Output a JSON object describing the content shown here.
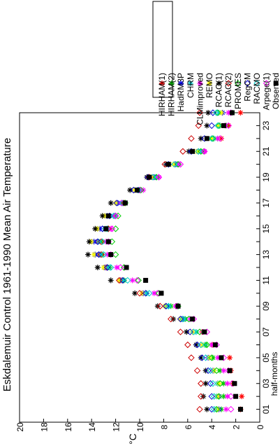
{
  "chart_data": {
    "type": "scatter",
    "title": "Eskdalemuir Control 1961-1990 Mean Air Temperature",
    "xlabel": "half-months",
    "ylabel": "°C",
    "xlim": [
      0,
      24
    ],
    "ylim": [
      0,
      20
    ],
    "x_ticks": [
      "01",
      "03",
      "05",
      "07",
      "09",
      "11",
      "13",
      "15",
      "17",
      "19",
      "21",
      "23"
    ],
    "y_ticks": [
      "0",
      "2",
      "4",
      "6",
      "8",
      "10",
      "12",
      "14",
      "16",
      "18",
      "20"
    ],
    "orientation": "rotated 90° counter-clockwise",
    "legend_position": "top",
    "grid": false,
    "x": [
      1,
      2,
      3,
      4,
      5,
      6,
      7,
      8,
      9,
      10,
      11,
      12,
      13,
      14,
      15,
      16,
      17,
      18,
      19,
      20,
      21,
      22,
      23,
      24
    ],
    "series": [
      {
        "name": "HIRHAM(1)",
        "color": "#ff0000",
        "marker": "asterisk",
        "values": [
          1.6,
          1.5,
          2.2,
          2.4,
          2.5,
          3.9,
          4.8,
          6.4,
          7.0,
          9.8,
          11.5,
          12.8,
          13.4,
          13.5,
          12.9,
          12.2,
          11.5,
          10.0,
          8.8,
          7.0,
          4.6,
          3.2,
          2.6,
          1.6
        ]
      },
      {
        "name": "HIRHAM(2)",
        "color": "#00cc00",
        "marker": "asterisk",
        "values": [
          3.2,
          3.0,
          3.0,
          3.3,
          3.9,
          4.5,
          5.3,
          6.2,
          7.4,
          9.4,
          11.3,
          12.5,
          13.1,
          13.2,
          12.8,
          12.2,
          11.5,
          10.0,
          8.6,
          6.8,
          4.7,
          3.5,
          2.8,
          2.3
        ]
      },
      {
        "name": "HadRM3P",
        "color": "#0000ff",
        "marker": "asterisk",
        "values": [
          3.4,
          3.4,
          3.5,
          3.9,
          4.3,
          4.8,
          5.6,
          6.5,
          7.8,
          9.7,
          11.6,
          12.9,
          13.7,
          13.8,
          13.3,
          12.7,
          11.8,
          10.2,
          8.8,
          7.0,
          5.1,
          4.0,
          3.3,
          3.1
        ]
      },
      {
        "name": "CHRM",
        "color": "#00cccc",
        "marker": "asterisk",
        "values": [
          3.6,
          3.6,
          3.5,
          3.8,
          4.2,
          4.6,
          5.3,
          6.3,
          7.6,
          9.4,
          11.4,
          12.6,
          13.3,
          13.4,
          12.9,
          12.2,
          11.5,
          10.0,
          8.7,
          6.9,
          4.9,
          3.8,
          3.3,
          3.4
        ]
      },
      {
        "name": "CLMimproved",
        "color": "#ff00ff",
        "marker": "asterisk",
        "values": [
          2.8,
          2.7,
          2.7,
          3.0,
          3.5,
          4.0,
          4.7,
          5.8,
          7.0,
          8.8,
          10.6,
          11.9,
          12.7,
          12.8,
          12.4,
          12.0,
          11.3,
          9.7,
          8.4,
          6.7,
          4.6,
          3.5,
          2.9,
          2.6
        ]
      },
      {
        "name": "REMO",
        "color": "#ffff00",
        "marker": "asterisk",
        "values": [
          3.5,
          3.5,
          3.4,
          3.8,
          4.2,
          4.8,
          5.6,
          6.6,
          7.9,
          9.8,
          11.7,
          13.0,
          13.8,
          14.0,
          13.5,
          12.9,
          12.0,
          10.4,
          9.0,
          7.2,
          5.2,
          4.0,
          3.4,
          3.2
        ]
      },
      {
        "name": "RCAO(1)",
        "color": "#000000",
        "marker": "asterisk",
        "values": [
          4.4,
          4.7,
          4.5,
          4.5,
          4.9,
          5.3,
          6.1,
          7.2,
          8.5,
          10.4,
          12.4,
          13.5,
          14.3,
          14.2,
          13.7,
          13.1,
          12.4,
          10.8,
          9.4,
          7.8,
          5.9,
          4.9,
          4.4,
          4.3
        ]
      },
      {
        "name": "RCAO(2)",
        "color": "#cc0000",
        "marker": "diamond",
        "values": [
          5.0,
          4.9,
          4.9,
          5.2,
          5.7,
          6.0,
          6.6,
          7.4,
          8.3,
          10.0,
          11.7,
          12.7,
          13.2,
          13.2,
          12.6,
          12.0,
          11.3,
          10.1,
          9.2,
          7.9,
          6.4,
          5.7,
          5.1,
          5.0
        ]
      },
      {
        "name": "PROMES",
        "color": "#00cc00",
        "marker": "diamond",
        "values": [
          3.6,
          3.4,
          3.3,
          3.6,
          4.0,
          4.4,
          5.0,
          5.9,
          6.8,
          8.4,
          10.1,
          11.3,
          12.0,
          12.3,
          12.0,
          11.8,
          11.2,
          9.9,
          8.6,
          6.8,
          4.9,
          3.9,
          3.4,
          3.5
        ]
      },
      {
        "name": "RegCM",
        "color": "#0000cc",
        "marker": "diamond",
        "values": [
          4.0,
          4.0,
          4.1,
          4.3,
          4.8,
          5.2,
          5.8,
          6.6,
          7.8,
          9.5,
          11.4,
          12.7,
          13.4,
          13.5,
          13.1,
          12.5,
          11.9,
          10.5,
          9.3,
          7.6,
          5.7,
          4.6,
          4.0,
          3.9
        ]
      },
      {
        "name": "RACMO",
        "color": "#00cccc",
        "marker": "diamond",
        "values": [
          3.8,
          3.8,
          3.9,
          4.1,
          4.5,
          4.9,
          5.5,
          6.4,
          7.6,
          9.2,
          11.0,
          12.4,
          13.0,
          13.1,
          12.7,
          12.1,
          11.4,
          10.1,
          8.9,
          7.1,
          5.1,
          4.0,
          3.5,
          3.6
        ]
      },
      {
        "name": "Arpege(1)",
        "color": "#ff00ff",
        "marker": "diamond",
        "values": [
          2.4,
          2.4,
          2.3,
          2.6,
          3.0,
          3.6,
          4.4,
          5.5,
          6.9,
          8.5,
          10.2,
          11.6,
          12.4,
          12.6,
          12.3,
          12.0,
          11.5,
          10.0,
          8.4,
          6.6,
          4.6,
          3.3,
          2.6,
          2.4
        ]
      },
      {
        "name": "Observed",
        "color": "#000000",
        "marker": "square",
        "values": [
          1.6,
          2.0,
          2.1,
          2.5,
          3.2,
          3.7,
          4.6,
          5.6,
          6.8,
          8.2,
          9.5,
          11.1,
          12.4,
          12.6,
          12.8,
          12.6,
          11.2,
          10.2,
          9.2,
          7.6,
          5.6,
          4.4,
          3.0,
          2.3
        ]
      }
    ]
  }
}
